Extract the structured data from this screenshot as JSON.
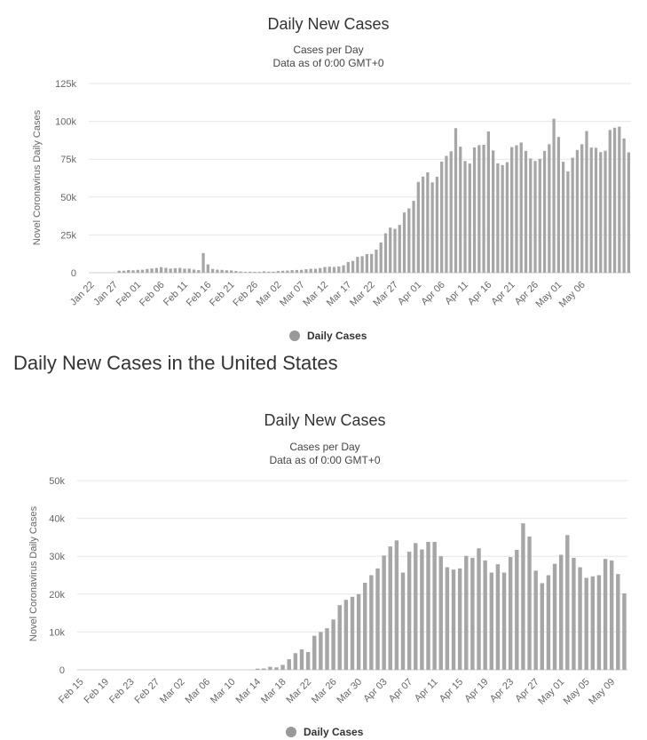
{
  "section_heading": "Daily New Cases in the United States",
  "colors": {
    "bar": "#a6a6a6",
    "legend_marker": "#999999",
    "grid": "#e6e6e6",
    "text": "#333333",
    "axis_text": "#666666"
  },
  "chart_data": [
    {
      "type": "bar",
      "title": "Daily New Cases",
      "subtitle_lines": [
        "Cases per Day",
        "Data as of 0:00 GMT+0"
      ],
      "ylabel": "Novel Coronavirus Daily Cases",
      "ylim": [
        0,
        125000
      ],
      "yticks": [
        0,
        25000,
        50000,
        75000,
        100000,
        125000
      ],
      "ytick_labels": [
        "0",
        "25k",
        "50k",
        "75k",
        "100k",
        "125k"
      ],
      "xtick_labels": [
        "Jan 22",
        "Jan 27",
        "Feb 01",
        "Feb 06",
        "Feb 11",
        "Feb 16",
        "Feb 21",
        "Feb 26",
        "Mar 02",
        "Mar 07",
        "Mar 12",
        "Mar 17",
        "Mar 22",
        "Mar 27",
        "Apr 01",
        "Apr 06",
        "Apr 11",
        "Apr 16",
        "Apr 21",
        "Apr 26",
        "May 01",
        "May 06"
      ],
      "tick_every": 5,
      "grid": true,
      "legend": {
        "label": "Daily Cases",
        "position": "bottom-center"
      },
      "series": [
        {
          "name": "Daily Cases",
          "values": [
            0,
            0,
            0,
            0,
            0,
            0,
            1300,
            1300,
            1800,
            1600,
            1900,
            2000,
            2500,
            2800,
            3100,
            3700,
            3200,
            2700,
            3000,
            3200,
            2700,
            2700,
            2100,
            1700,
            13000,
            5500,
            2500,
            2000,
            1900,
            1600,
            1500,
            1100,
            800,
            500,
            700,
            600,
            500,
            900,
            700,
            700,
            1100,
            1300,
            1400,
            1700,
            1800,
            1900,
            2300,
            2600,
            2600,
            3100,
            3800,
            4000,
            3800,
            4100,
            4900,
            7100,
            7800,
            10500,
            10900,
            12300,
            12400,
            15300,
            20000,
            26000,
            29800,
            29000,
            31600,
            39800,
            42500,
            47500,
            60000,
            63500,
            66300,
            59700,
            63400,
            73400,
            77200,
            80200,
            95500,
            83300,
            73800,
            72100,
            82800,
            84300,
            84500,
            93300,
            80800,
            72300,
            71100,
            73000,
            83000,
            84200,
            86000,
            80500,
            75500,
            73800,
            75200,
            80500,
            84900,
            101700,
            89700,
            73300,
            67000,
            76000,
            81100,
            84900,
            93600,
            82700,
            82500,
            79700,
            80600,
            94300,
            95800,
            96500,
            88700,
            79500
          ]
        }
      ]
    },
    {
      "type": "bar",
      "title": "Daily New Cases",
      "subtitle_lines": [
        "Cases per Day",
        "Data as of 0:00 GMT+0"
      ],
      "ylabel": "Novel Coronavirus Daily Cases",
      "ylim": [
        0,
        50000
      ],
      "yticks": [
        0,
        10000,
        20000,
        30000,
        40000,
        50000
      ],
      "ytick_labels": [
        "0",
        "10k",
        "20k",
        "30k",
        "40k",
        "50k"
      ],
      "xtick_labels": [
        "Feb 15",
        "Feb 19",
        "Feb 23",
        "Feb 27",
        "Mar 02",
        "Mar 06",
        "Mar 10",
        "Mar 14",
        "Mar 18",
        "Mar 22",
        "Mar 26",
        "Mar 30",
        "Apr 03",
        "Apr 07",
        "Apr 11",
        "Apr 15",
        "Apr 19",
        "Apr 23",
        "Apr 27",
        "May 01",
        "May 05",
        "May 09"
      ],
      "tick_every": 4,
      "grid": true,
      "legend": {
        "label": "Daily Cases",
        "position": "bottom-center"
      },
      "series": [
        {
          "name": "Daily Cases",
          "values": [
            0,
            0,
            0,
            0,
            0,
            0,
            0,
            0,
            0,
            0,
            0,
            0,
            0,
            0,
            0,
            0,
            0,
            0,
            0,
            0,
            0,
            0,
            0,
            0,
            0,
            0,
            0,
            0,
            300,
            350,
            800,
            650,
            1300,
            2800,
            4400,
            5400,
            4700,
            9000,
            10000,
            11000,
            13300,
            17100,
            18500,
            19300,
            20000,
            23000,
            25000,
            26800,
            30200,
            32600,
            34200,
            25700,
            31200,
            33500,
            31800,
            33800,
            33800,
            30000,
            27100,
            26500,
            26800,
            30100,
            29600,
            32100,
            28900,
            25700,
            27900,
            25700,
            29800,
            31700,
            38700,
            35200,
            26200,
            22900,
            25000,
            28000,
            30400,
            35600,
            29600,
            27100,
            24300,
            24700,
            25000,
            29300,
            28900,
            25300,
            20200
          ]
        }
      ]
    }
  ]
}
